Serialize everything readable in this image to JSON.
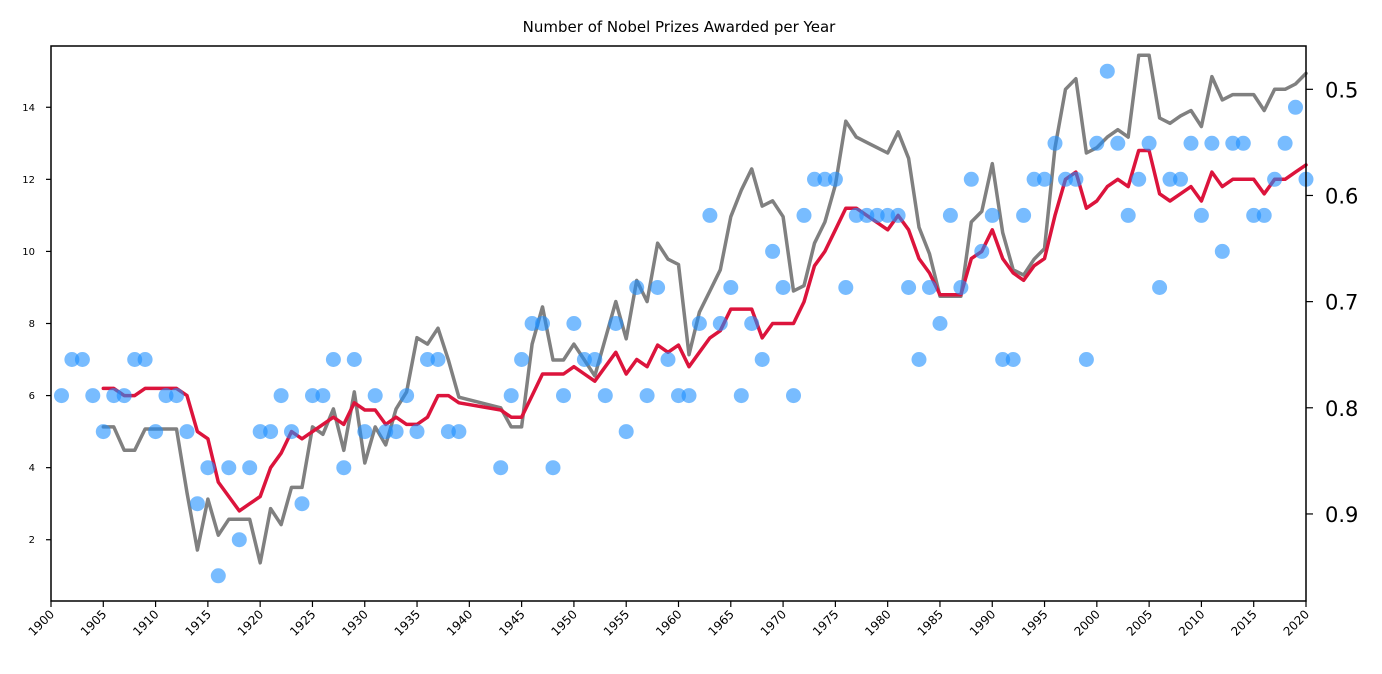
{
  "chart_data": {
    "type": "scatter",
    "title": "Number of Nobel Prizes Awarded per Year",
    "xlabel": "",
    "ylabel": "",
    "xlim": [
      1900,
      2020
    ],
    "ylim": [
      0.3,
      15.7
    ],
    "y2lim": [
      0.982,
      0.4592
    ],
    "y2_inverted": true,
    "grid": false,
    "x_ticks": [
      "1900",
      "1905",
      "1910",
      "1915",
      "1920",
      "1925",
      "1930",
      "1935",
      "1940",
      "1945",
      "1950",
      "1955",
      "1960",
      "1965",
      "1970",
      "1975",
      "1980",
      "1985",
      "1990",
      "1995",
      "2000",
      "2005",
      "2010",
      "2015",
      "2020"
    ],
    "y_ticks": [
      "2",
      "4",
      "6",
      "8",
      "10",
      "12",
      "14"
    ],
    "y2_ticks": [
      "0.5",
      "0.6",
      "0.7",
      "0.8",
      "0.9"
    ],
    "colors": {
      "prizes": "#1e90ff",
      "rolling_avg": "#dc143c",
      "second_axis": "#808080"
    },
    "series": [
      {
        "kind": "scatter",
        "axis": "left",
        "x": [
          1901,
          1902,
          1903,
          1904,
          1905,
          1906,
          1907,
          1908,
          1909,
          1910,
          1911,
          1912,
          1913,
          1914,
          1915,
          1916,
          1917,
          1918,
          1919,
          1920,
          1921,
          1922,
          1923,
          1924,
          1925,
          1926,
          1927,
          1928,
          1929,
          1930,
          1931,
          1932,
          1933,
          1934,
          1935,
          1936,
          1937,
          1938,
          1939,
          1943,
          1944,
          1945,
          1946,
          1947,
          1948,
          1949,
          1950,
          1951,
          1952,
          1953,
          1954,
          1955,
          1956,
          1957,
          1958,
          1959,
          1960,
          1961,
          1962,
          1963,
          1964,
          1965,
          1966,
          1967,
          1968,
          1969,
          1970,
          1971,
          1972,
          1973,
          1974,
          1975,
          1976,
          1977,
          1978,
          1979,
          1980,
          1981,
          1982,
          1983,
          1984,
          1985,
          1986,
          1987,
          1988,
          1989,
          1990,
          1991,
          1992,
          1993,
          1994,
          1995,
          1996,
          1997,
          1998,
          1999,
          2000,
          2001,
          2002,
          2003,
          2004,
          2005,
          2006,
          2007,
          2008,
          2009,
          2010,
          2011,
          2012,
          2013,
          2014,
          2015,
          2016,
          2017,
          2018,
          2019,
          2020
        ],
        "y": [
          6,
          7,
          7,
          6,
          5,
          6,
          6,
          7,
          7,
          5,
          6,
          6,
          5,
          3,
          4,
          1,
          4,
          2,
          4,
          5,
          5,
          6,
          5,
          3,
          6,
          6,
          7,
          4,
          7,
          5,
          6,
          5,
          5,
          6,
          5,
          7,
          7,
          5,
          5,
          4,
          6,
          7,
          8,
          8,
          4,
          6,
          8,
          7,
          7,
          6,
          8,
          5,
          9,
          6,
          9,
          7,
          6,
          6,
          8,
          11,
          8,
          9,
          6,
          8,
          7,
          10,
          9,
          6,
          11,
          12,
          12,
          12,
          9,
          11,
          11,
          11,
          11,
          11,
          9,
          7,
          9,
          8,
          11,
          9,
          12,
          10,
          11,
          7,
          7,
          11,
          12,
          12,
          13,
          12,
          12,
          7,
          13,
          15,
          13,
          11,
          12,
          13,
          9,
          12,
          12,
          13,
          11,
          13,
          10,
          13,
          13,
          11,
          11,
          12,
          13,
          14,
          12
        ]
      },
      {
        "kind": "line",
        "axis": "left",
        "x": [
          1905,
          1906,
          1907,
          1908,
          1909,
          1910,
          1911,
          1912,
          1913,
          1914,
          1915,
          1916,
          1917,
          1918,
          1919,
          1920,
          1921,
          1922,
          1923,
          1924,
          1925,
          1926,
          1927,
          1928,
          1929,
          1930,
          1931,
          1932,
          1933,
          1934,
          1935,
          1936,
          1937,
          1938,
          1939,
          1943,
          1944,
          1945,
          1946,
          1947,
          1948,
          1949,
          1950,
          1951,
          1952,
          1953,
          1954,
          1955,
          1956,
          1957,
          1958,
          1959,
          1960,
          1961,
          1962,
          1963,
          1964,
          1965,
          1966,
          1967,
          1968,
          1969,
          1970,
          1971,
          1972,
          1973,
          1974,
          1975,
          1976,
          1977,
          1978,
          1979,
          1980,
          1981,
          1982,
          1983,
          1984,
          1985,
          1986,
          1987,
          1988,
          1989,
          1990,
          1991,
          1992,
          1993,
          1994,
          1995,
          1996,
          1997,
          1998,
          1999,
          2000,
          2001,
          2002,
          2003,
          2004,
          2005,
          2006,
          2007,
          2008,
          2009,
          2010,
          2011,
          2012,
          2013,
          2014,
          2015,
          2016,
          2017,
          2018,
          2019,
          2020
        ],
        "y": [
          6.2,
          6.2,
          6.0,
          6.0,
          6.2,
          6.2,
          6.2,
          6.2,
          6.0,
          5.0,
          4.8,
          3.6,
          3.2,
          2.8,
          3.0,
          3.2,
          4.0,
          4.4,
          5.0,
          4.8,
          5.0,
          5.2,
          5.4,
          5.2,
          5.8,
          5.6,
          5.6,
          5.2,
          5.4,
          5.2,
          5.2,
          5.4,
          6.0,
          6.0,
          5.8,
          5.6,
          5.4,
          5.4,
          6.0,
          6.6,
          6.6,
          6.6,
          6.8,
          6.6,
          6.4,
          6.8,
          7.2,
          6.6,
          7.0,
          6.8,
          7.4,
          7.2,
          7.4,
          6.8,
          7.2,
          7.6,
          7.8,
          8.4,
          8.4,
          8.4,
          7.6,
          8.0,
          8.0,
          8.0,
          8.6,
          9.6,
          10.0,
          10.6,
          11.2,
          11.2,
          11.0,
          10.8,
          10.6,
          11.0,
          10.6,
          9.8,
          9.4,
          8.8,
          8.8,
          8.8,
          9.8,
          10.0,
          10.6,
          9.8,
          9.4,
          9.2,
          9.6,
          9.8,
          11.0,
          12.0,
          12.2,
          11.2,
          11.4,
          11.8,
          12.0,
          11.8,
          12.8,
          12.8,
          11.6,
          11.4,
          11.6,
          11.8,
          11.4,
          12.2,
          11.8,
          12.0,
          12.0,
          12.0,
          11.6,
          12.0,
          12.0,
          12.2,
          12.4
        ]
      },
      {
        "kind": "line",
        "axis": "right",
        "x": [
          1905,
          1906,
          1907,
          1908,
          1909,
          1910,
          1911,
          1912,
          1913,
          1914,
          1915,
          1916,
          1917,
          1918,
          1919,
          1920,
          1921,
          1922,
          1923,
          1924,
          1925,
          1926,
          1927,
          1928,
          1929,
          1930,
          1931,
          1932,
          1933,
          1934,
          1935,
          1936,
          1937,
          1938,
          1939,
          1943,
          1944,
          1945,
          1946,
          1947,
          1948,
          1949,
          1950,
          1951,
          1952,
          1953,
          1954,
          1955,
          1956,
          1957,
          1958,
          1959,
          1960,
          1961,
          1962,
          1963,
          1964,
          1965,
          1966,
          1967,
          1968,
          1969,
          1970,
          1971,
          1972,
          1973,
          1974,
          1975,
          1976,
          1977,
          1978,
          1979,
          1980,
          1981,
          1982,
          1983,
          1984,
          1985,
          1986,
          1987,
          1988,
          1989,
          1990,
          1991,
          1992,
          1993,
          1994,
          1995,
          1996,
          1997,
          1998,
          1999,
          2000,
          2001,
          2002,
          2003,
          2004,
          2005,
          2006,
          2007,
          2008,
          2009,
          2010,
          2011,
          2012,
          2013,
          2014,
          2015,
          2016,
          2017,
          2018,
          2019,
          2020
        ],
        "y": [
          0.818,
          0.818,
          0.84,
          0.84,
          0.82,
          0.82,
          0.82,
          0.82,
          0.88,
          0.934,
          0.886,
          0.92,
          0.905,
          0.905,
          0.905,
          0.946,
          0.895,
          0.91,
          0.875,
          0.875,
          0.818,
          0.825,
          0.801,
          0.84,
          0.785,
          0.852,
          0.818,
          0.835,
          0.801,
          0.785,
          0.734,
          0.74,
          0.725,
          0.755,
          0.79,
          0.8,
          0.818,
          0.818,
          0.74,
          0.705,
          0.755,
          0.755,
          0.74,
          0.755,
          0.77,
          0.735,
          0.7,
          0.735,
          0.68,
          0.7,
          0.645,
          0.66,
          0.665,
          0.75,
          0.71,
          0.69,
          0.67,
          0.62,
          0.595,
          0.575,
          0.61,
          0.605,
          0.62,
          0.69,
          0.685,
          0.645,
          0.625,
          0.59,
          0.53,
          0.545,
          0.55,
          0.555,
          0.56,
          0.54,
          0.565,
          0.63,
          0.655,
          0.695,
          0.695,
          0.695,
          0.625,
          0.615,
          0.57,
          0.635,
          0.67,
          0.675,
          0.66,
          0.65,
          0.555,
          0.5,
          0.49,
          0.56,
          0.555,
          0.545,
          0.538,
          0.545,
          0.468,
          0.468,
          0.527,
          0.532,
          0.525,
          0.52,
          0.535,
          0.488,
          0.51,
          0.505,
          0.505,
          0.505,
          0.52,
          0.5,
          0.5,
          0.495,
          0.485
        ]
      }
    ]
  }
}
